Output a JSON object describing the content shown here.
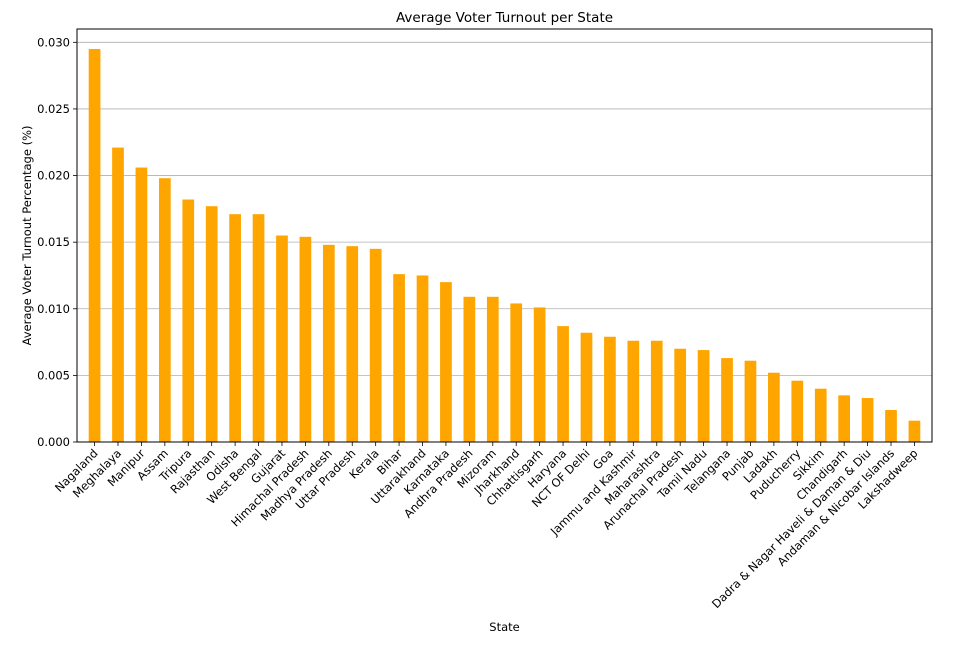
{
  "chart_data": {
    "type": "bar",
    "title": "Average Voter Turnout per State",
    "xlabel": "State",
    "ylabel": "Average Voter Turnout Percentage (%)",
    "ylim": [
      0,
      0.031
    ],
    "yticks": [
      "0.000",
      "0.005",
      "0.010",
      "0.015",
      "0.020",
      "0.025",
      "0.030"
    ],
    "ytick_values": [
      0,
      0.005,
      0.01,
      0.015,
      0.02,
      0.025,
      0.03
    ],
    "grid": "y",
    "bar_color": "#FFA500",
    "categories": [
      "Nagaland",
      "Meghalaya",
      "Manipur",
      "Assam",
      "Tripura",
      "Rajasthan",
      "Odisha",
      "West Bengal",
      "Gujarat",
      "Himachal Pradesh",
      "Madhya Pradesh",
      "Uttar Pradesh",
      "Kerala",
      "Bihar",
      "Uttarakhand",
      "Karnataka",
      "Andhra Pradesh",
      "Mizoram",
      "Jharkhand",
      "Chhattisgarh",
      "Haryana",
      "NCT OF Delhi",
      "Goa",
      "Jammu and Kashmir",
      "Maharashtra",
      "Arunachal Pradesh",
      "Tamil Nadu",
      "Telangana",
      "Punjab",
      "Ladakh",
      "Puducherry",
      "Sikkim",
      "Chandigarh",
      "Dadra & Nagar Haveli & Daman & Diu",
      "Andaman & Nicobar Islands",
      "Lakshadweep"
    ],
    "values": [
      0.0295,
      0.0221,
      0.0206,
      0.0198,
      0.0182,
      0.0177,
      0.0171,
      0.0171,
      0.0155,
      0.0154,
      0.0148,
      0.0147,
      0.0145,
      0.0126,
      0.0125,
      0.012,
      0.0109,
      0.0109,
      0.0104,
      0.0101,
      0.0087,
      0.0082,
      0.0079,
      0.0076,
      0.0076,
      0.007,
      0.0069,
      0.0063,
      0.0061,
      0.0052,
      0.0046,
      0.004,
      0.0035,
      0.0033,
      0.0024,
      0.0016
    ]
  }
}
